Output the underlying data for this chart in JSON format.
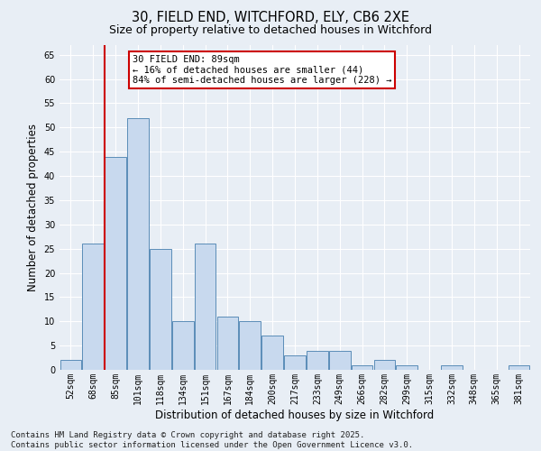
{
  "title_line1": "30, FIELD END, WITCHFORD, ELY, CB6 2XE",
  "title_line2": "Size of property relative to detached houses in Witchford",
  "xlabel": "Distribution of detached houses by size in Witchford",
  "ylabel": "Number of detached properties",
  "categories": [
    "52sqm",
    "68sqm",
    "85sqm",
    "101sqm",
    "118sqm",
    "134sqm",
    "151sqm",
    "167sqm",
    "184sqm",
    "200sqm",
    "217sqm",
    "233sqm",
    "249sqm",
    "266sqm",
    "282sqm",
    "299sqm",
    "315sqm",
    "332sqm",
    "348sqm",
    "365sqm",
    "381sqm"
  ],
  "values": [
    2,
    26,
    44,
    52,
    25,
    10,
    26,
    11,
    10,
    7,
    3,
    4,
    4,
    1,
    2,
    1,
    0,
    1,
    0,
    0,
    1
  ],
  "bar_color": "#c8d9ee",
  "bar_edge_color": "#5b8db8",
  "highlight_line_index": 1.5,
  "highlight_line_color": "#cc0000",
  "annotation_text": "30 FIELD END: 89sqm\n← 16% of detached houses are smaller (44)\n84% of semi-detached houses are larger (228) →",
  "annotation_box_color": "#ffffff",
  "annotation_box_edge": "#cc0000",
  "ylim": [
    0,
    67
  ],
  "yticks": [
    0,
    5,
    10,
    15,
    20,
    25,
    30,
    35,
    40,
    45,
    50,
    55,
    60,
    65
  ],
  "background_color": "#e8eef5",
  "grid_color": "#ffffff",
  "footer_text": "Contains HM Land Registry data © Crown copyright and database right 2025.\nContains public sector information licensed under the Open Government Licence v3.0.",
  "title_fontsize": 10.5,
  "subtitle_fontsize": 9,
  "axis_label_fontsize": 8.5,
  "tick_fontsize": 7,
  "annotation_fontsize": 7.5,
  "footer_fontsize": 6.5
}
